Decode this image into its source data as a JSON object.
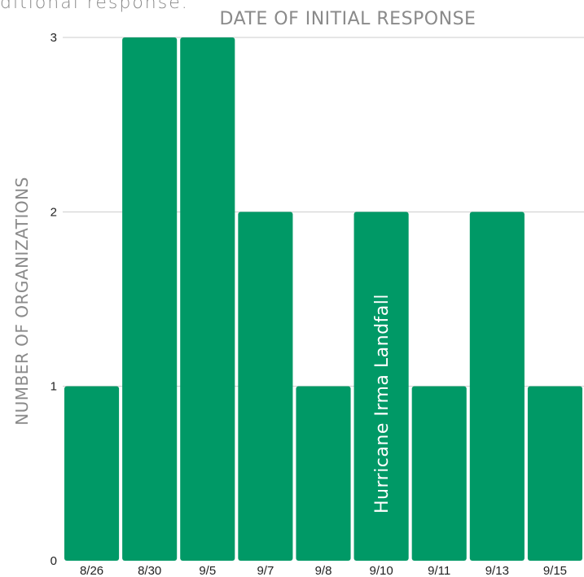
{
  "header": {
    "cut_text": "ditional response."
  },
  "chart_data": {
    "type": "bar",
    "title": "DATE OF INITIAL RESPONSE",
    "xlabel": "",
    "ylabel": "NUMBER OF ORGANIZATIONS",
    "categories": [
      "8/26",
      "8/30",
      "9/5",
      "9/7",
      "9/8",
      "9/10",
      "9/11",
      "9/13",
      "9/15"
    ],
    "values": [
      1,
      3,
      3,
      2,
      1,
      2,
      1,
      2,
      1
    ],
    "ylim": [
      0,
      3
    ],
    "yticks": [
      "0",
      "1",
      "2",
      "3"
    ],
    "grid": true,
    "bar_color": "#009966",
    "annotation": {
      "text": "Hurricane Irma Landfall",
      "category": "9/10"
    }
  }
}
